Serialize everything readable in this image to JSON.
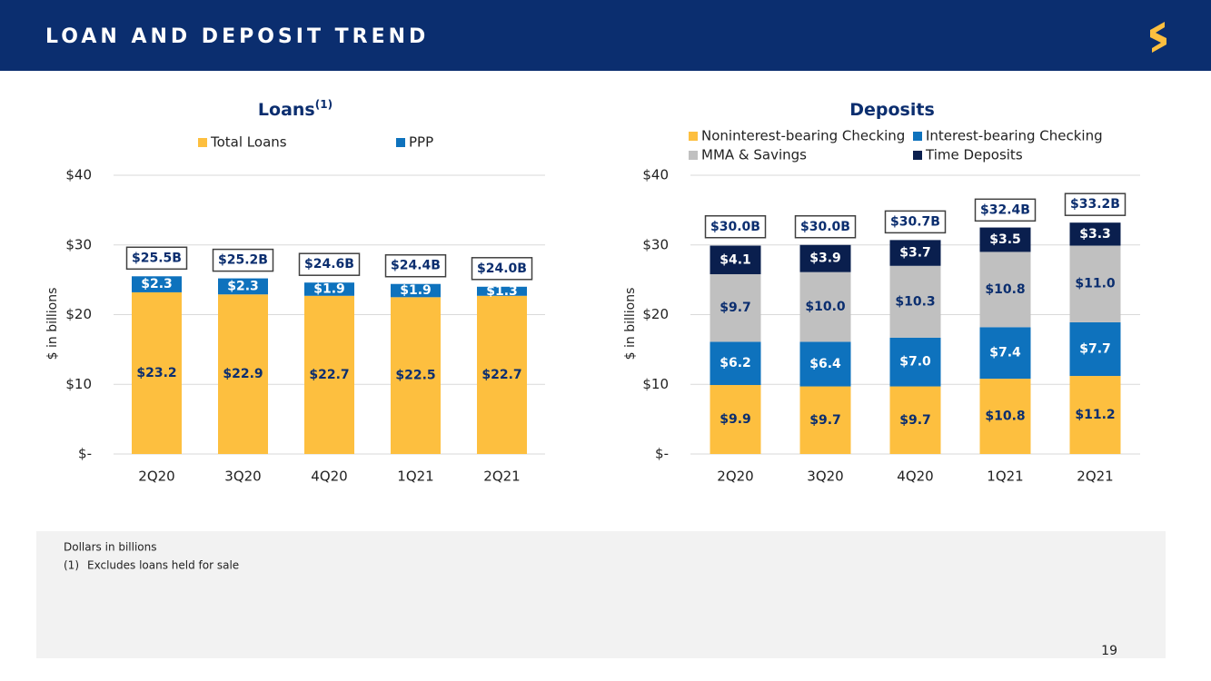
{
  "header": {
    "title": "LOAN AND DEPOSIT TREND",
    "page_number": "19"
  },
  "footnotes": {
    "note": "Dollars in billions",
    "items": [
      {
        "marker": "(1)",
        "text": "Excludes loans held for sale"
      }
    ]
  },
  "chart_data": [
    {
      "type": "stacked_bar",
      "title": "Loans",
      "title_note": "(1)",
      "ylabel": "$ in billions",
      "categories": [
        "2Q20",
        "3Q20",
        "4Q20",
        "1Q21",
        "2Q21"
      ],
      "series": [
        {
          "name": "Total Loans",
          "color": "#FDBF3F",
          "values": [
            23.2,
            22.9,
            22.7,
            22.5,
            22.7
          ],
          "value_labels": [
            "$23.2",
            "$22.9",
            "$22.7",
            "$22.5",
            "$22.7"
          ]
        },
        {
          "name": "PPP",
          "color": "#0E72BD",
          "values": [
            2.3,
            2.3,
            1.9,
            1.9,
            1.3
          ],
          "value_labels": [
            "$2.3",
            "$2.3",
            "$1.9",
            "$1.9",
            "$1.3"
          ]
        }
      ],
      "totals": {
        "values": [
          25.5,
          25.2,
          24.6,
          24.4,
          24.0
        ],
        "value_labels": [
          "$25.5B",
          "$25.2B",
          "$24.6B",
          "$24.4B",
          "$24.0B"
        ]
      },
      "ylim": [
        0,
        40
      ],
      "yticks": [
        {
          "value": 0,
          "label": "$-"
        },
        {
          "value": 10,
          "label": "$10"
        },
        {
          "value": 20,
          "label": "$20"
        },
        {
          "value": 30,
          "label": "$30"
        },
        {
          "value": 40,
          "label": "$40"
        }
      ],
      "grid": true
    },
    {
      "type": "stacked_bar",
      "title": "Deposits",
      "ylabel": "$ in billions",
      "categories": [
        "2Q20",
        "3Q20",
        "4Q20",
        "1Q21",
        "2Q21"
      ],
      "series": [
        {
          "name": "Noninterest-bearing Checking",
          "color": "#FDBF3F",
          "values": [
            9.9,
            9.7,
            9.7,
            10.8,
            11.2
          ],
          "value_labels": [
            "$9.9",
            "$9.7",
            "$9.7",
            "$10.8",
            "$11.2"
          ]
        },
        {
          "name": "Interest-bearing Checking",
          "color": "#0E72BD",
          "values": [
            6.2,
            6.4,
            7.0,
            7.4,
            7.7
          ],
          "value_labels": [
            "$6.2",
            "$6.4",
            "$7.0",
            "$7.4",
            "$7.7"
          ]
        },
        {
          "name": "MMA & Savings",
          "color": "#C0C0C0",
          "values": [
            9.7,
            10.0,
            10.3,
            10.8,
            11.0
          ],
          "value_labels": [
            "$9.7",
            "$10.0",
            "$10.3",
            "$10.8",
            "$11.0"
          ]
        },
        {
          "name": "Time Deposits",
          "color": "#0A1F4E",
          "values": [
            4.1,
            3.9,
            3.7,
            3.5,
            3.3
          ],
          "value_labels": [
            "$4.1",
            "$3.9",
            "$3.7",
            "$3.5",
            "$3.3"
          ]
        }
      ],
      "totals": {
        "values": [
          30.0,
          30.0,
          30.7,
          32.4,
          33.2
        ],
        "value_labels": [
          "$30.0B",
          "$30.0B",
          "$30.7B",
          "$32.4B",
          "$33.2B"
        ]
      },
      "ylim": [
        0,
        40
      ],
      "yticks": [
        {
          "value": 0,
          "label": "$-"
        },
        {
          "value": 10,
          "label": "$10"
        },
        {
          "value": 20,
          "label": "$20"
        },
        {
          "value": 30,
          "label": "$30"
        },
        {
          "value": 40,
          "label": "$40"
        }
      ],
      "grid": true
    }
  ]
}
